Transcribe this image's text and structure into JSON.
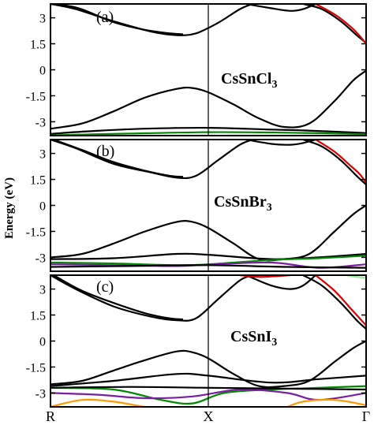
{
  "chart_data": [
    {
      "type": "line",
      "panel_label": "(a)",
      "compound_base": "CsSnCl",
      "compound_sub": "3",
      "ylabel": "Energy (eV)",
      "ylim": [
        -3.8,
        3.8
      ],
      "yticks": [
        "3",
        "1.5",
        "0",
        "-1.5",
        "-3"
      ],
      "ytick_values": [
        3,
        1.5,
        0,
        -1.5,
        -3
      ],
      "x_labels": [
        "R",
        "X",
        "Γ"
      ],
      "x_label_pos": [
        0,
        0.5,
        1
      ],
      "series": [
        {
          "color": "#000000",
          "points": [
            [
              0,
              3.8
            ],
            [
              0.08,
              3.5
            ],
            [
              0.2,
              2.8
            ],
            [
              0.32,
              2.2
            ],
            [
              0.4,
              2.0
            ],
            [
              0.46,
              2.1
            ],
            [
              0.53,
              2.7
            ],
            [
              0.6,
              3.5
            ],
            [
              0.64,
              3.8
            ]
          ]
        },
        {
          "color": "#000000",
          "points": [
            [
              0.01,
              3.8
            ],
            [
              0.09,
              3.55
            ],
            [
              0.2,
              2.75
            ],
            [
              0.3,
              2.3
            ],
            [
              0.38,
              2.1
            ],
            [
              0.42,
              2.05
            ]
          ]
        },
        {
          "color": "#000000",
          "points": [
            [
              0.62,
              3.8
            ],
            [
              0.7,
              3.55
            ],
            [
              0.76,
              3.4
            ],
            [
              0.8,
              3.5
            ],
            [
              0.84,
              3.8
            ]
          ]
        },
        {
          "color": "#000000",
          "points": [
            [
              0.8,
              3.8
            ],
            [
              0.86,
              3.5
            ],
            [
              0.92,
              2.8
            ],
            [
              0.97,
              2.0
            ],
            [
              1,
              1.55
            ]
          ]
        },
        {
          "color": "#dd0000",
          "points": [
            [
              0.84,
              3.8
            ],
            [
              0.9,
              3.2
            ],
            [
              0.95,
              2.5
            ],
            [
              0.98,
              1.95
            ],
            [
              1,
              1.5
            ]
          ]
        },
        {
          "color": "#000000",
          "points": [
            [
              0,
              -3.4
            ],
            [
              0.1,
              -3.1
            ],
            [
              0.2,
              -2.4
            ],
            [
              0.3,
              -1.6
            ],
            [
              0.4,
              -1.1
            ],
            [
              0.45,
              -1.05
            ],
            [
              0.5,
              -1.3
            ],
            [
              0.58,
              -2.0
            ],
            [
              0.66,
              -2.8
            ],
            [
              0.74,
              -3.3
            ],
            [
              0.82,
              -3.1
            ],
            [
              0.9,
              -1.8
            ],
            [
              0.96,
              -0.6
            ],
            [
              1,
              -0.05
            ]
          ]
        },
        {
          "color": "#000000",
          "points": [
            [
              0,
              -3.7
            ],
            [
              0.12,
              -3.55
            ],
            [
              0.3,
              -3.4
            ],
            [
              0.5,
              -3.35
            ],
            [
              0.7,
              -3.45
            ],
            [
              0.8,
              -3.5
            ],
            [
              1,
              -3.65
            ]
          ]
        },
        {
          "color": "#008800",
          "points": [
            [
              0,
              -3.78
            ],
            [
              0.25,
              -3.68
            ],
            [
              0.5,
              -3.6
            ],
            [
              0.7,
              -3.62
            ],
            [
              0.85,
              -3.66
            ],
            [
              1,
              -3.72
            ]
          ]
        }
      ]
    },
    {
      "type": "line",
      "panel_label": "(b)",
      "compound_base": "CsSnBr",
      "compound_sub": "3",
      "ylim": [
        -3.8,
        3.8
      ],
      "yticks": [
        "3",
        "1.5",
        "0",
        "-1.5",
        "-3"
      ],
      "ytick_values": [
        3,
        1.5,
        0,
        -1.5,
        -3
      ],
      "series": [
        {
          "color": "#000000",
          "points": [
            [
              0,
              3.8
            ],
            [
              0.08,
              3.3
            ],
            [
              0.2,
              2.4
            ],
            [
              0.32,
              1.9
            ],
            [
              0.4,
              1.6
            ],
            [
              0.46,
              1.7
            ],
            [
              0.53,
              2.6
            ],
            [
              0.6,
              3.5
            ],
            [
              0.64,
              3.8
            ]
          ]
        },
        {
          "color": "#000000",
          "points": [
            [
              0.01,
              3.8
            ],
            [
              0.1,
              3.2
            ],
            [
              0.2,
              2.5
            ],
            [
              0.3,
              2.0
            ],
            [
              0.38,
              1.7
            ],
            [
              0.42,
              1.65
            ]
          ]
        },
        {
          "color": "#000000",
          "points": [
            [
              0.62,
              3.8
            ],
            [
              0.7,
              3.55
            ],
            [
              0.76,
              3.5
            ],
            [
              0.8,
              3.6
            ],
            [
              0.84,
              3.8
            ]
          ]
        },
        {
          "color": "#000000",
          "points": [
            [
              0.8,
              3.8
            ],
            [
              0.86,
              3.4
            ],
            [
              0.92,
              2.6
            ],
            [
              0.97,
              1.7
            ],
            [
              1,
              1.2
            ]
          ]
        },
        {
          "color": "#dd0000",
          "points": [
            [
              0.84,
              3.8
            ],
            [
              0.9,
              3.1
            ],
            [
              0.95,
              2.3
            ],
            [
              0.98,
              1.8
            ],
            [
              1,
              1.3
            ]
          ]
        },
        {
          "color": "#000000",
          "points": [
            [
              0,
              -3.0
            ],
            [
              0.1,
              -2.8
            ],
            [
              0.2,
              -2.2
            ],
            [
              0.3,
              -1.5
            ],
            [
              0.4,
              -0.95
            ],
            [
              0.45,
              -0.95
            ],
            [
              0.5,
              -1.3
            ],
            [
              0.58,
              -2.2
            ],
            [
              0.66,
              -3.1
            ],
            [
              0.74,
              -3.1
            ],
            [
              0.82,
              -2.8
            ],
            [
              0.9,
              -1.5
            ],
            [
              0.96,
              -0.5
            ],
            [
              1,
              0.0
            ]
          ]
        },
        {
          "color": "#000000",
          "points": [
            [
              0,
              -3.1
            ],
            [
              0.2,
              -3.05
            ],
            [
              0.4,
              -2.8
            ],
            [
              0.5,
              -2.85
            ],
            [
              0.7,
              -3.1
            ],
            [
              0.85,
              -3.0
            ],
            [
              1,
              -2.8
            ]
          ]
        },
        {
          "color": "#008800",
          "points": [
            [
              0,
              -3.3
            ],
            [
              0.2,
              -3.35
            ],
            [
              0.4,
              -3.45
            ],
            [
              0.5,
              -3.4
            ],
            [
              0.7,
              -3.15
            ],
            [
              0.85,
              -3.05
            ],
            [
              1,
              -2.9
            ]
          ]
        },
        {
          "color": "#7b1fa2",
          "points": [
            [
              0,
              -3.4
            ],
            [
              0.2,
              -3.45
            ],
            [
              0.4,
              -3.5
            ],
            [
              0.5,
              -3.42
            ],
            [
              0.7,
              -3.3
            ],
            [
              0.85,
              -3.6
            ],
            [
              1,
              -3.4
            ]
          ]
        },
        {
          "color": "#000000",
          "points": [
            [
              0,
              -3.55
            ],
            [
              0.25,
              -3.5
            ],
            [
              0.5,
              -3.45
            ],
            [
              0.75,
              -3.55
            ],
            [
              1,
              -3.6
            ]
          ]
        }
      ]
    },
    {
      "type": "line",
      "panel_label": "(c)",
      "compound_base": "CsSnI",
      "compound_sub": "3",
      "ylim": [
        -3.8,
        3.8
      ],
      "yticks": [
        "3",
        "1.5",
        "0",
        "-1.5",
        "-3"
      ],
      "ytick_values": [
        3,
        1.5,
        0,
        -1.5,
        -3
      ],
      "series": [
        {
          "color": "#000000",
          "points": [
            [
              0,
              3.8
            ],
            [
              0.08,
              3.0
            ],
            [
              0.2,
              2.0
            ],
            [
              0.32,
              1.4
            ],
            [
              0.4,
              1.2
            ],
            [
              0.46,
              1.3
            ],
            [
              0.53,
              2.4
            ],
            [
              0.6,
              3.5
            ],
            [
              0.64,
              3.8
            ]
          ]
        },
        {
          "color": "#000000",
          "points": [
            [
              0.01,
              3.8
            ],
            [
              0.1,
              2.9
            ],
            [
              0.2,
              2.2
            ],
            [
              0.3,
              1.6
            ],
            [
              0.38,
              1.3
            ],
            [
              0.42,
              1.25
            ]
          ]
        },
        {
          "color": "#000000",
          "points": [
            [
              0.62,
              3.8
            ],
            [
              0.7,
              3.2
            ],
            [
              0.76,
              3.0
            ],
            [
              0.8,
              3.2
            ],
            [
              0.84,
              3.8
            ]
          ]
        },
        {
          "color": "#000000",
          "points": [
            [
              0.8,
              3.8
            ],
            [
              0.86,
              3.2
            ],
            [
              0.92,
              2.2
            ],
            [
              0.97,
              1.2
            ],
            [
              1,
              0.7
            ]
          ]
        },
        {
          "color": "#dd0000",
          "points": [
            [
              0.84,
              3.8
            ],
            [
              0.9,
              2.9
            ],
            [
              0.95,
              1.9
            ],
            [
              0.98,
              1.3
            ],
            [
              1,
              0.9
            ]
          ]
        },
        {
          "color": "#dd0000",
          "points": [
            [
              0.6,
              3.8
            ],
            [
              0.66,
              3.7
            ],
            [
              0.72,
              3.75
            ],
            [
              0.76,
              3.8
            ]
          ]
        },
        {
          "color": "#90ee90",
          "points": [
            [
              0.94,
              3.8
            ],
            [
              0.97,
              3.7
            ],
            [
              1,
              3.65
            ]
          ]
        },
        {
          "color": "#000000",
          "points": [
            [
              0,
              -2.5
            ],
            [
              0.1,
              -2.3
            ],
            [
              0.2,
              -1.7
            ],
            [
              0.3,
              -1.1
            ],
            [
              0.4,
              -0.6
            ],
            [
              0.45,
              -0.65
            ],
            [
              0.5,
              -1.0
            ],
            [
              0.58,
              -1.9
            ],
            [
              0.66,
              -2.6
            ],
            [
              0.74,
              -2.6
            ],
            [
              0.82,
              -2.3
            ],
            [
              0.9,
              -1.2
            ],
            [
              0.96,
              -0.4
            ],
            [
              1,
              0.0
            ]
          ]
        },
        {
          "color": "#000000",
          "points": [
            [
              0,
              -2.6
            ],
            [
              0.2,
              -2.3
            ],
            [
              0.4,
              -1.9
            ],
            [
              0.5,
              -2.0
            ],
            [
              0.7,
              -2.4
            ],
            [
              0.85,
              -2.2
            ],
            [
              1,
              -2.0
            ]
          ]
        },
        {
          "color": "#008800",
          "points": [
            [
              0,
              -2.7
            ],
            [
              0.2,
              -2.8
            ],
            [
              0.35,
              -3.4
            ],
            [
              0.45,
              -3.6
            ],
            [
              0.55,
              -3.0
            ],
            [
              0.7,
              -2.8
            ],
            [
              0.85,
              -2.7
            ],
            [
              1,
              -2.6
            ]
          ]
        },
        {
          "color": "#7b1fa2",
          "points": [
            [
              0,
              -3.0
            ],
            [
              0.15,
              -3.1
            ],
            [
              0.3,
              -3.3
            ],
            [
              0.45,
              -3.2
            ],
            [
              0.6,
              -2.8
            ],
            [
              0.75,
              -3.0
            ],
            [
              0.85,
              -3.4
            ],
            [
              1,
              -3.0
            ]
          ]
        },
        {
          "color": "#ff9800",
          "points": [
            [
              0,
              -3.8
            ],
            [
              0.1,
              -3.4
            ],
            [
              0.2,
              -3.5
            ],
            [
              0.3,
              -3.8
            ],
            [
              0.38,
              -3.9
            ]
          ]
        },
        {
          "color": "#ff9800",
          "points": [
            [
              0.74,
              -3.9
            ],
            [
              0.8,
              -3.5
            ],
            [
              0.9,
              -3.4
            ],
            [
              1,
              -3.7
            ]
          ]
        },
        {
          "color": "#000000",
          "points": [
            [
              0,
              -2.7
            ],
            [
              0.25,
              -2.65
            ],
            [
              0.5,
              -2.7
            ],
            [
              0.75,
              -2.75
            ],
            [
              1,
              -2.8
            ]
          ]
        }
      ]
    }
  ]
}
